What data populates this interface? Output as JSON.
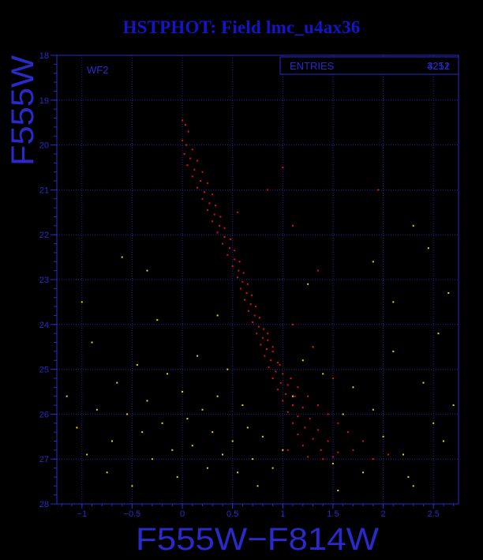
{
  "chart_data": {
    "type": "scatter",
    "title": "HSTPHOT: Field lmc_u4ax36",
    "panel_label": "WF2",
    "xlabel": "F555W−F814W",
    "ylabel": "F555W",
    "xlim": [
      -1.25,
      2.75
    ],
    "ylim": [
      18,
      28
    ],
    "y_inverted": true,
    "grid": true,
    "xticks": [
      -1,
      -0.5,
      0,
      0.5,
      1,
      1.5,
      2,
      2.5
    ],
    "xtick_labels": [
      "−1",
      "−0.5",
      "0",
      "0.5",
      "1",
      "1.5",
      "2",
      "2.5"
    ],
    "yticks": [
      18,
      19,
      20,
      21,
      22,
      23,
      24,
      25,
      26,
      27,
      28
    ],
    "ytick_labels": [
      "18",
      "19",
      "20",
      "21",
      "22",
      "23",
      "24",
      "25",
      "26",
      "27",
      "28"
    ],
    "stats": {
      "label": "ENTRIES",
      "values": [
        "4251",
        "3212"
      ]
    },
    "colors": {
      "background": "#000000",
      "axis": "#2a2acc",
      "grid": "#2222aa",
      "series_main": "#e01010",
      "series_field": "#e8d800"
    },
    "series": [
      {
        "color": "#e01010",
        "points": [
          [
            0.0,
            19.45
          ],
          [
            0.03,
            19.55
          ],
          [
            0.06,
            19.7
          ],
          [
            0.0,
            19.9
          ],
          [
            0.04,
            20.0
          ],
          [
            0.1,
            20.1
          ],
          [
            0.02,
            20.2
          ],
          [
            0.08,
            20.3
          ],
          [
            0.15,
            20.35
          ],
          [
            0.05,
            20.45
          ],
          [
            0.12,
            20.55
          ],
          [
            0.2,
            20.6
          ],
          [
            0.1,
            20.7
          ],
          [
            0.18,
            20.8
          ],
          [
            0.25,
            20.85
          ],
          [
            0.15,
            20.95
          ],
          [
            0.22,
            21.05
          ],
          [
            0.3,
            21.1
          ],
          [
            0.2,
            21.2
          ],
          [
            0.27,
            21.3
          ],
          [
            0.33,
            21.35
          ],
          [
            0.25,
            21.45
          ],
          [
            0.32,
            21.55
          ],
          [
            0.38,
            21.6
          ],
          [
            0.3,
            21.7
          ],
          [
            0.37,
            21.8
          ],
          [
            0.42,
            21.85
          ],
          [
            0.35,
            21.95
          ],
          [
            0.42,
            22.05
          ],
          [
            0.48,
            22.1
          ],
          [
            0.4,
            22.2
          ],
          [
            0.47,
            22.3
          ],
          [
            0.52,
            22.35
          ],
          [
            0.45,
            22.45
          ],
          [
            0.52,
            22.55
          ],
          [
            0.57,
            22.6
          ],
          [
            0.5,
            22.7
          ],
          [
            0.56,
            22.8
          ],
          [
            0.61,
            22.85
          ],
          [
            0.55,
            22.95
          ],
          [
            0.6,
            23.05
          ],
          [
            0.65,
            23.1
          ],
          [
            0.58,
            23.2
          ],
          [
            0.64,
            23.3
          ],
          [
            0.69,
            23.35
          ],
          [
            0.62,
            23.45
          ],
          [
            0.68,
            23.55
          ],
          [
            0.73,
            23.6
          ],
          [
            0.66,
            23.7
          ],
          [
            0.72,
            23.8
          ],
          [
            0.77,
            23.85
          ],
          [
            0.7,
            23.95
          ],
          [
            0.76,
            24.05
          ],
          [
            0.81,
            24.1
          ],
          [
            0.74,
            24.2
          ],
          [
            0.8,
            24.3
          ],
          [
            0.85,
            24.35
          ],
          [
            0.78,
            24.45
          ],
          [
            0.84,
            24.55
          ],
          [
            0.9,
            24.6
          ],
          [
            0.82,
            24.7
          ],
          [
            0.88,
            24.8
          ],
          [
            0.95,
            24.85
          ],
          [
            0.86,
            24.95
          ],
          [
            0.93,
            25.05
          ],
          [
            1.0,
            25.1
          ],
          [
            0.9,
            25.2
          ],
          [
            0.98,
            25.3
          ],
          [
            1.05,
            25.35
          ],
          [
            0.95,
            25.45
          ],
          [
            1.03,
            25.55
          ],
          [
            1.12,
            25.6
          ],
          [
            1.0,
            25.7
          ],
          [
            1.1,
            25.8
          ],
          [
            1.2,
            25.85
          ],
          [
            1.05,
            25.95
          ],
          [
            1.15,
            26.05
          ],
          [
            1.27,
            26.1
          ],
          [
            1.1,
            26.2
          ],
          [
            1.22,
            26.3
          ],
          [
            1.35,
            26.35
          ],
          [
            1.15,
            26.45
          ],
          [
            1.3,
            26.55
          ],
          [
            1.45,
            26.6
          ],
          [
            1.2,
            26.7
          ],
          [
            1.38,
            26.8
          ],
          [
            1.55,
            26.85
          ],
          [
            1.25,
            26.95
          ],
          [
            1.5,
            26.95
          ],
          [
            1.7,
            26.8
          ],
          [
            1.8,
            26.6
          ],
          [
            1.65,
            26.4
          ],
          [
            1.55,
            26.2
          ],
          [
            1.45,
            26.0
          ],
          [
            1.35,
            25.8
          ],
          [
            1.25,
            25.6
          ],
          [
            1.15,
            25.4
          ],
          [
            1.08,
            25.2
          ],
          [
            0.97,
            24.9
          ],
          [
            0.9,
            24.5
          ],
          [
            0.85,
            24.2
          ],
          [
            1.1,
            24.0
          ],
          [
            1.3,
            24.5
          ],
          [
            1.5,
            25.2
          ],
          [
            0.55,
            21.5
          ],
          [
            0.85,
            21.0
          ],
          [
            1.0,
            20.5
          ],
          [
            1.1,
            21.8
          ],
          [
            1.35,
            22.8
          ],
          [
            1.95,
            21.0
          ],
          [
            1.05,
            26.8
          ],
          [
            1.4,
            27.0
          ],
          [
            1.9,
            27.0
          ],
          [
            2.05,
            26.9
          ]
        ]
      },
      {
        "color": "#e8d800",
        "points": [
          [
            -1.15,
            25.6
          ],
          [
            -1.05,
            26.3
          ],
          [
            -0.95,
            26.9
          ],
          [
            -0.9,
            24.4
          ],
          [
            -0.85,
            25.9
          ],
          [
            -0.75,
            27.3
          ],
          [
            -0.7,
            26.6
          ],
          [
            -0.65,
            25.3
          ],
          [
            -0.6,
            22.5
          ],
          [
            -0.55,
            26.0
          ],
          [
            -0.5,
            27.6
          ],
          [
            -0.45,
            24.9
          ],
          [
            -0.4,
            26.4
          ],
          [
            -0.35,
            25.7
          ],
          [
            -0.3,
            27.0
          ],
          [
            -0.25,
            23.9
          ],
          [
            -0.2,
            26.2
          ],
          [
            -0.15,
            25.1
          ],
          [
            -0.1,
            26.8
          ],
          [
            -0.05,
            27.4
          ],
          [
            0.0,
            25.5
          ],
          [
            0.05,
            26.1
          ],
          [
            0.1,
            26.7
          ],
          [
            0.15,
            24.7
          ],
          [
            0.2,
            25.9
          ],
          [
            0.25,
            27.2
          ],
          [
            0.3,
            26.4
          ],
          [
            0.35,
            25.6
          ],
          [
            0.4,
            26.9
          ],
          [
            0.45,
            25.0
          ],
          [
            0.5,
            26.6
          ],
          [
            0.55,
            27.3
          ],
          [
            0.6,
            25.8
          ],
          [
            0.65,
            26.3
          ],
          [
            0.7,
            27.0
          ],
          [
            0.8,
            26.5
          ],
          [
            0.9,
            27.2
          ],
          [
            1.0,
            26.8
          ],
          [
            1.1,
            25.6
          ],
          [
            1.2,
            24.8
          ],
          [
            1.3,
            24.5
          ],
          [
            1.4,
            25.1
          ],
          [
            1.5,
            27.1
          ],
          [
            1.6,
            26.0
          ],
          [
            1.7,
            25.4
          ],
          [
            1.8,
            27.3
          ],
          [
            1.9,
            25.9
          ],
          [
            2.0,
            26.5
          ],
          [
            2.1,
            24.6
          ],
          [
            2.2,
            26.9
          ],
          [
            2.3,
            27.6
          ],
          [
            2.4,
            25.3
          ],
          [
            2.5,
            26.2
          ],
          [
            2.55,
            24.2
          ],
          [
            2.6,
            26.6
          ],
          [
            2.65,
            23.3
          ],
          [
            2.7,
            25.8
          ],
          [
            2.3,
            21.8
          ],
          [
            2.45,
            22.3
          ],
          [
            1.9,
            22.6
          ],
          [
            -0.35,
            22.8
          ],
          [
            0.35,
            23.8
          ],
          [
            1.25,
            23.1
          ],
          [
            2.1,
            23.5
          ],
          [
            -1.0,
            23.5
          ],
          [
            0.75,
            27.6
          ],
          [
            1.55,
            27.7
          ],
          [
            2.25,
            27.4
          ]
        ]
      }
    ]
  }
}
